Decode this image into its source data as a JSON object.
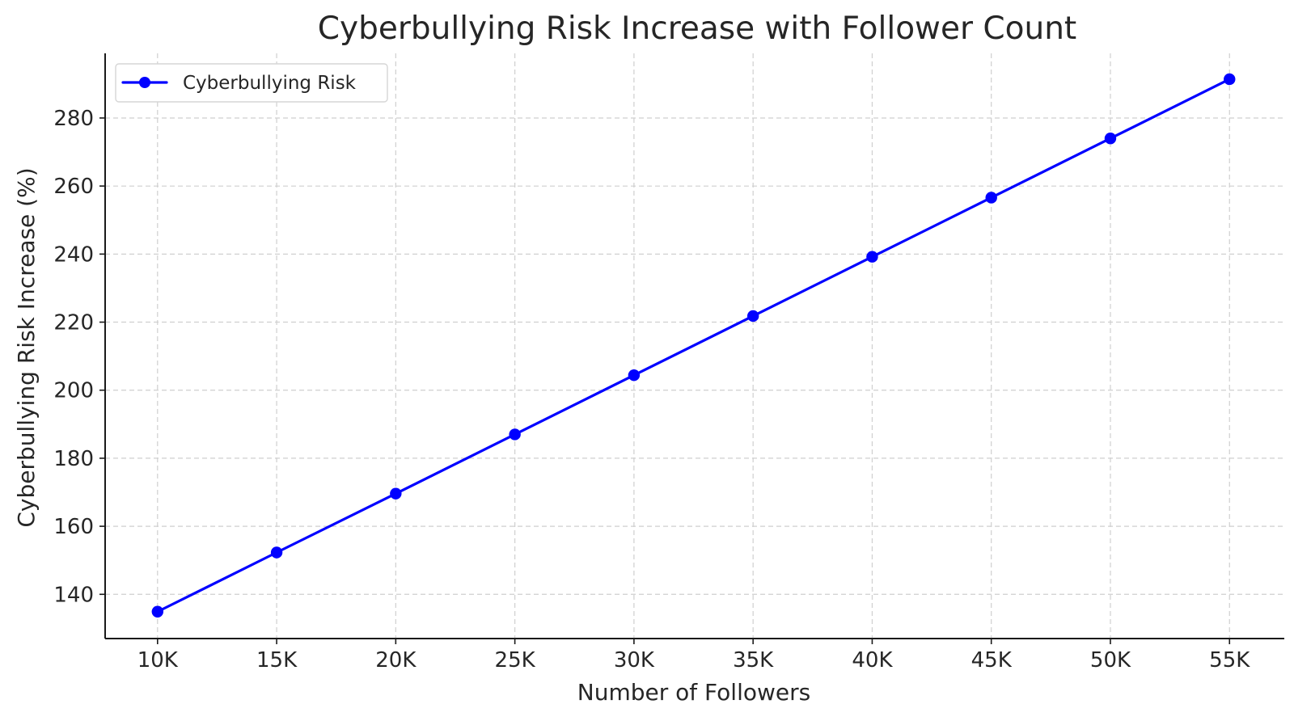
{
  "chart_data": {
    "type": "line",
    "title": "Cyberbullying Risk Increase with Follower Count",
    "xlabel": "Number of Followers",
    "ylabel": "Cyberbullying Risk Increase (%)",
    "x": [
      "10K",
      "15K",
      "20K",
      "25K",
      "30K",
      "35K",
      "40K",
      "45K",
      "50K",
      "55K"
    ],
    "x_values": [
      10000,
      15000,
      20000,
      25000,
      30000,
      35000,
      40000,
      45000,
      50000,
      55000
    ],
    "series": [
      {
        "name": "Cyberbullying Risk",
        "color": "#0000ff",
        "marker": "circle",
        "values": [
          134.9,
          152.3,
          169.6,
          187.0,
          204.4,
          221.8,
          239.2,
          256.6,
          274.0,
          291.4
        ]
      }
    ],
    "xlim": [
      7800,
      57300
    ],
    "ylim": [
      127,
      299
    ],
    "yticks": [
      140,
      160,
      180,
      200,
      220,
      240,
      260,
      280
    ],
    "grid": true,
    "legend_position": "upper-left"
  }
}
